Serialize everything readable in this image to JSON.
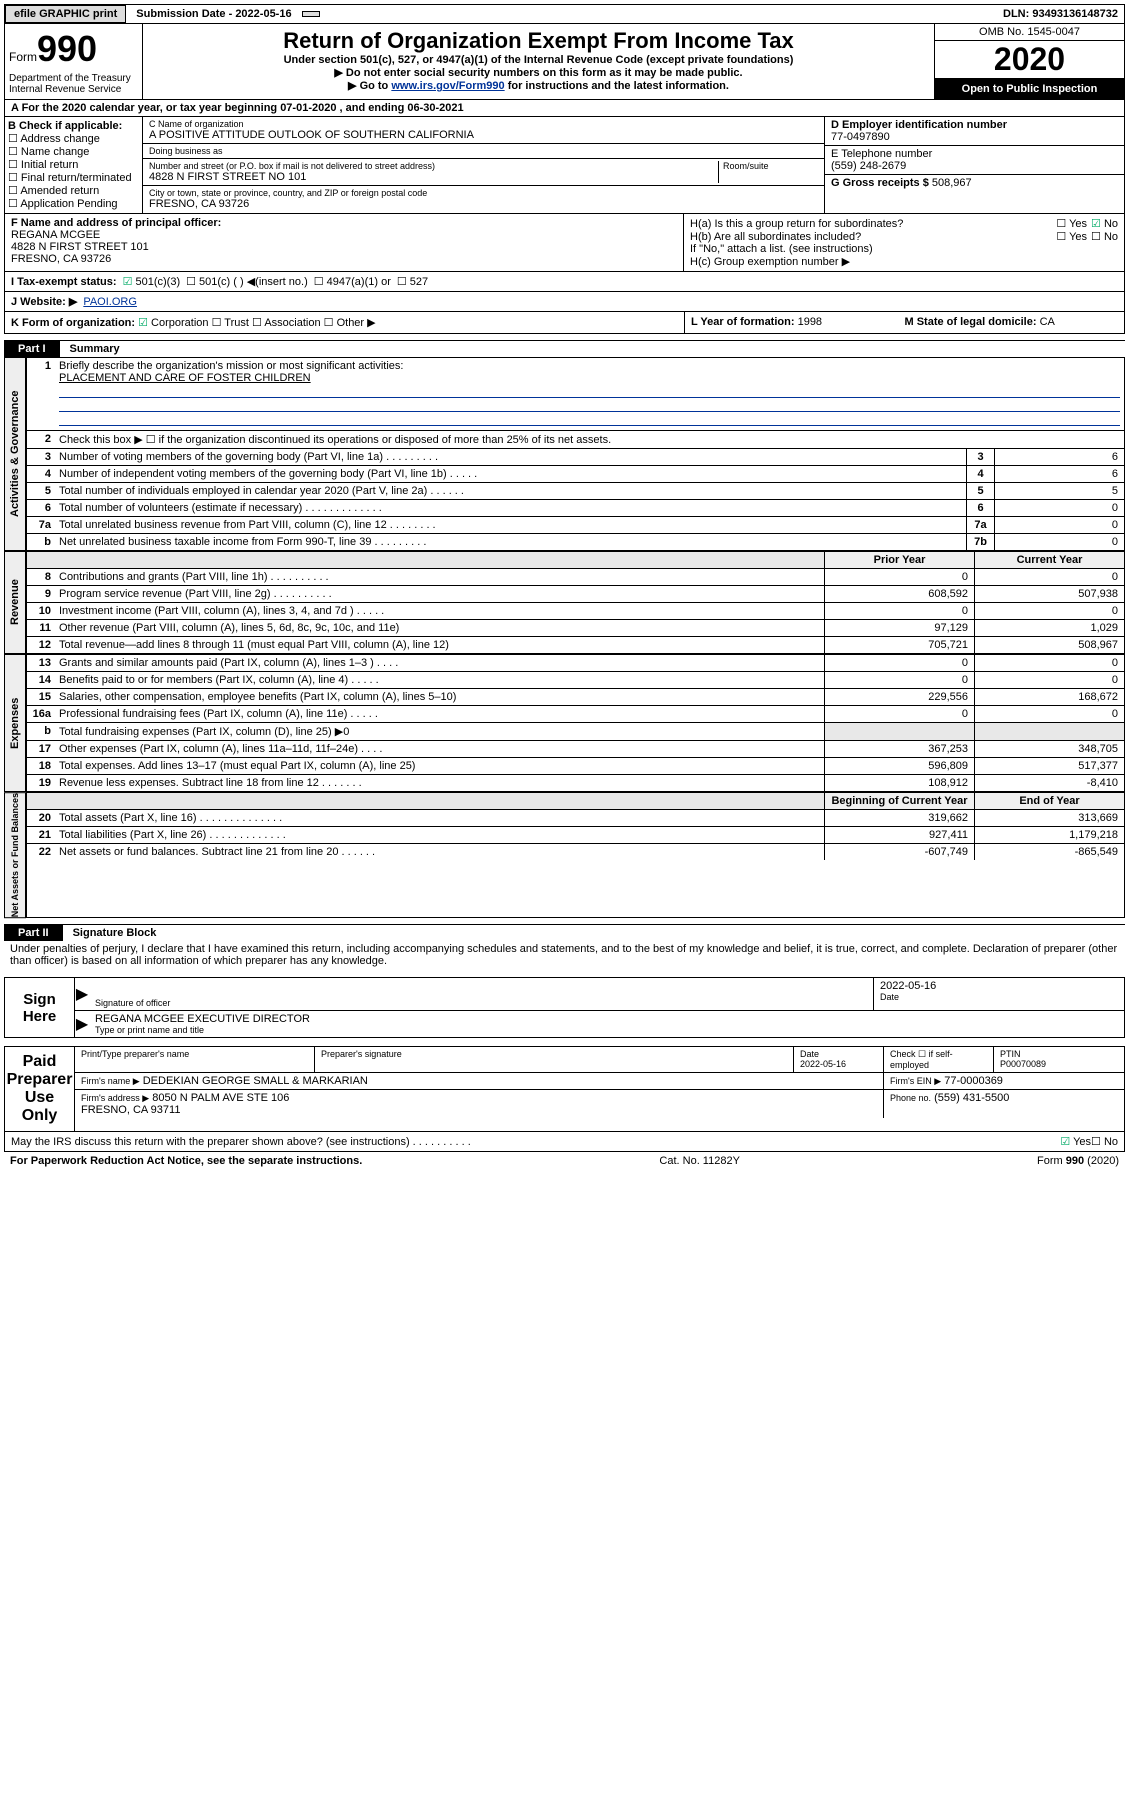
{
  "topbar": {
    "efile": "efile GRAPHIC print",
    "submission": "Submission Date - 2022-05-16",
    "dln": "DLN: 93493136148732"
  },
  "header": {
    "form_word": "Form",
    "form_num": "990",
    "dept": "Department of the Treasury\nInternal Revenue Service",
    "title": "Return of Organization Exempt From Income Tax",
    "sub1": "Under section 501(c), 527, or 4947(a)(1) of the Internal Revenue Code (except private foundations)",
    "sub2": "▶ Do not enter social security numbers on this form as it may be made public.",
    "sub3_pre": "▶ Go to ",
    "sub3_link": "www.irs.gov/Form990",
    "sub3_post": " for instructions and the latest information.",
    "omb": "OMB No. 1545-0047",
    "year": "2020",
    "open": "Open to Public Inspection"
  },
  "period": "A For the 2020 calendar year, or tax year beginning 07-01-2020    , and ending 06-30-2021",
  "boxB": {
    "label": "B Check if applicable:",
    "opts": [
      "Address change",
      "Name change",
      "Initial return",
      "Final return/terminated",
      "Amended return",
      "Application Pending"
    ]
  },
  "boxC": {
    "name_lbl": "C Name of organization",
    "name": "A POSITIVE ATTITUDE OUTLOOK OF SOUTHERN CALIFORNIA",
    "dba_lbl": "Doing business as",
    "addr_lbl": "Number and street (or P.O. box if mail is not delivered to street address)",
    "addr": "4828 N FIRST STREET NO 101",
    "room_lbl": "Room/suite",
    "city_lbl": "City or town, state or province, country, and ZIP or foreign postal code",
    "city": "FRESNO, CA  93726"
  },
  "boxD": {
    "lbl": "D Employer identification number",
    "val": "77-0497890"
  },
  "boxE": {
    "lbl": "E Telephone number",
    "val": "(559) 248-2679"
  },
  "boxG": {
    "lbl": "G Gross receipts $",
    "val": "508,967"
  },
  "officer": {
    "lbl": "F  Name and address of principal officer:",
    "name": "REGANA MCGEE",
    "addr1": "4828 N FIRST STREET 101",
    "addr2": "FRESNO, CA  93726"
  },
  "boxH": {
    "a": "H(a)  Is this a group return for subordinates?",
    "a_no": "No",
    "b": "H(b)  Are all subordinates included?",
    "b_note": "If \"No,\" attach a list. (see instructions)",
    "c": "H(c)  Group exemption number ▶"
  },
  "status": {
    "lbl": "I   Tax-exempt status:",
    "o1": "501(c)(3)",
    "o2": "501(c) (  ) ◀(insert no.)",
    "o3": "4947(a)(1) or",
    "o4": "527"
  },
  "website": {
    "lbl": "J   Website: ▶",
    "val": "PAOI.ORG"
  },
  "k": {
    "lbl": "K Form of organization:",
    "opts": [
      "Corporation",
      "Trust",
      "Association",
      "Other ▶"
    ],
    "year_lbl": "L Year of formation:",
    "year": "1998",
    "state_lbl": "M State of legal domicile:",
    "state": "CA"
  },
  "part1": {
    "header": "Part I",
    "title": "Summary"
  },
  "gov": {
    "line1": "Briefly describe the organization's mission or most significant activities:",
    "mission": "PLACEMENT AND CARE OF FOSTER CHILDREN",
    "line2": "Check this box ▶ ☐  if the organization discontinued its operations or disposed of more than 25% of its net assets.",
    "rows": [
      {
        "n": "3",
        "d": "Number of voting members of the governing body (Part VI, line 1a)   .   .   .   .   .   .   .   .   .",
        "b": "3",
        "v": "6"
      },
      {
        "n": "4",
        "d": "Number of independent voting members of the governing body (Part VI, line 1b)   .   .   .   .   .",
        "b": "4",
        "v": "6"
      },
      {
        "n": "5",
        "d": "Total number of individuals employed in calendar year 2020 (Part V, line 2a)   .   .   .   .   .   .",
        "b": "5",
        "v": "5"
      },
      {
        "n": "6",
        "d": "Total number of volunteers (estimate if necessary)   .   .   .   .   .   .   .   .   .   .   .   .   .",
        "b": "6",
        "v": "0"
      },
      {
        "n": "7a",
        "d": "Total unrelated business revenue from Part VIII, column (C), line 12   .   .   .   .   .   .   .   .",
        "b": "7a",
        "v": "0"
      },
      {
        "n": "b",
        "d": "Net unrelated business taxable income from Form 990-T, line 39   .   .   .   .   .   .   .   .   .",
        "b": "7b",
        "v": "0"
      }
    ]
  },
  "revenue": {
    "hdr_prior": "Prior Year",
    "hdr_curr": "Current Year",
    "rows": [
      {
        "n": "8",
        "d": "Contributions and grants (Part VIII, line 1h)   .   .   .   .   .   .   .   .   .   .",
        "p": "0",
        "c": "0"
      },
      {
        "n": "9",
        "d": "Program service revenue (Part VIII, line 2g)   .   .   .   .   .   .   .   .   .   .",
        "p": "608,592",
        "c": "507,938"
      },
      {
        "n": "10",
        "d": "Investment income (Part VIII, column (A), lines 3, 4, and 7d )   .   .   .   .   .",
        "p": "0",
        "c": "0"
      },
      {
        "n": "11",
        "d": "Other revenue (Part VIII, column (A), lines 5, 6d, 8c, 9c, 10c, and 11e)",
        "p": "97,129",
        "c": "1,029"
      },
      {
        "n": "12",
        "d": "Total revenue—add lines 8 through 11 (must equal Part VIII, column (A), line 12)",
        "p": "705,721",
        "c": "508,967"
      }
    ]
  },
  "expenses": {
    "rows": [
      {
        "n": "13",
        "d": "Grants and similar amounts paid (Part IX, column (A), lines 1–3 )   .   .   .   .",
        "p": "0",
        "c": "0"
      },
      {
        "n": "14",
        "d": "Benefits paid to or for members (Part IX, column (A), line 4)   .   .   .   .   .",
        "p": "0",
        "c": "0"
      },
      {
        "n": "15",
        "d": "Salaries, other compensation, employee benefits (Part IX, column (A), lines 5–10)",
        "p": "229,556",
        "c": "168,672"
      },
      {
        "n": "16a",
        "d": "Professional fundraising fees (Part IX, column (A), line 11e)   .   .   .   .   .",
        "p": "0",
        "c": "0"
      },
      {
        "n": "b",
        "d": "Total fundraising expenses (Part IX, column (D), line 25) ▶0",
        "p": "",
        "c": "",
        "shade": true
      },
      {
        "n": "17",
        "d": "Other expenses (Part IX, column (A), lines 11a–11d, 11f–24e)   .   .   .   .",
        "p": "367,253",
        "c": "348,705"
      },
      {
        "n": "18",
        "d": "Total expenses. Add lines 13–17 (must equal Part IX, column (A), line 25)",
        "p": "596,809",
        "c": "517,377"
      },
      {
        "n": "19",
        "d": "Revenue less expenses. Subtract line 18 from line 12   .   .   .   .   .   .   .",
        "p": "108,912",
        "c": "-8,410"
      }
    ]
  },
  "netassets": {
    "hdr_prior": "Beginning of Current Year",
    "hdr_curr": "End of Year",
    "rows": [
      {
        "n": "20",
        "d": "Total assets (Part X, line 16)   .   .   .   .   .   .   .   .   .   .   .   .   .   .",
        "p": "319,662",
        "c": "313,669"
      },
      {
        "n": "21",
        "d": "Total liabilities (Part X, line 26)   .   .   .   .   .   .   .   .   .   .   .   .   .",
        "p": "927,411",
        "c": "1,179,218"
      },
      {
        "n": "22",
        "d": "Net assets or fund balances. Subtract line 21 from line 20   .   .   .   .   .   .",
        "p": "-607,749",
        "c": "-865,549"
      }
    ]
  },
  "part2": {
    "header": "Part II",
    "title": "Signature Block"
  },
  "sig": {
    "penalty": "Under penalties of perjury, I declare that I have examined this return, including accompanying schedules and statements, and to the best of my knowledge and belief, it is true, correct, and complete. Declaration of preparer (other than officer) is based on all information of which preparer has any knowledge.",
    "sign_here": "Sign Here",
    "sig_officer": "Signature of officer",
    "date": "Date",
    "date_val": "2022-05-16",
    "name": "REGANA MCGEE  EXECUTIVE DIRECTOR",
    "name_lbl": "Type or print name and title",
    "paid": "Paid Preparer Use Only",
    "prep_hdr": [
      "Print/Type preparer's name",
      "Preparer's signature",
      "Date",
      "Check ☐ if self-employed",
      "PTIN"
    ],
    "prep_vals": [
      "",
      "",
      "2022-05-16",
      "",
      "P00070089"
    ],
    "firm_name_lbl": "Firm's name    ▶",
    "firm_name": "DEDEKIAN GEORGE SMALL & MARKARIAN",
    "firm_ein_lbl": "Firm's EIN ▶",
    "firm_ein": "77-0000369",
    "firm_addr_lbl": "Firm's address ▶",
    "firm_addr": "8050 N PALM AVE STE 106\nFRESNO, CA  93711",
    "phone_lbl": "Phone no.",
    "phone": "(559) 431-5500",
    "discuss": "May the IRS discuss this return with the preparer shown above? (see instructions)   .   .   .   .   .   .   .   .   .   .",
    "discuss_yes": "Yes",
    "discuss_no": "No"
  },
  "footer": {
    "left": "For Paperwork Reduction Act Notice, see the separate instructions.",
    "mid": "Cat. No. 11282Y",
    "right": "Form 990 (2020)"
  }
}
